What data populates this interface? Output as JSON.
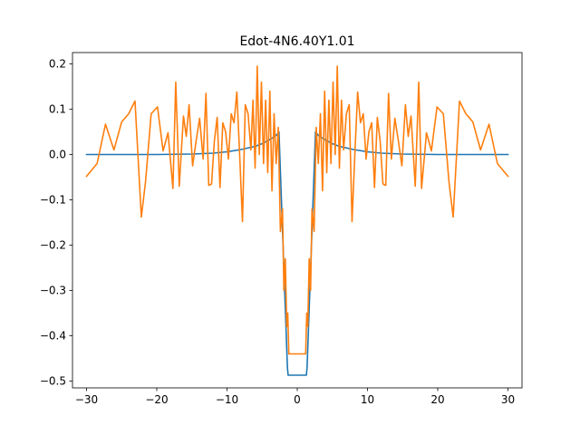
{
  "chart_data": {
    "type": "line",
    "title": "Edot-4N6.40Y1.01",
    "xlabel": "",
    "ylabel": "",
    "xlim": [
      -32,
      32
    ],
    "ylim": [
      -0.515,
      0.225
    ],
    "xticks": [
      -30,
      -20,
      -10,
      0,
      10,
      20,
      30
    ],
    "yticks": [
      -0.5,
      -0.4,
      -0.3,
      -0.2,
      -0.1,
      0.0,
      0.1,
      0.2
    ],
    "xtick_labels": [
      "−30",
      "−20",
      "−10",
      "0",
      "10",
      "20",
      "30"
    ],
    "ytick_labels": [
      "−0.5",
      "−0.4",
      "−0.3",
      "−0.2",
      "−0.1",
      "0.0",
      "0.1",
      "0.2"
    ],
    "grid": false,
    "series": [
      {
        "color": "#1f77b4",
        "points": [
          [
            -30,
            0.0
          ],
          [
            -25,
            0.0
          ],
          [
            -20,
            0.0
          ],
          [
            -15,
            0.001
          ],
          [
            -12,
            0.003
          ],
          [
            -10,
            0.006
          ],
          [
            -8,
            0.011
          ],
          [
            -6,
            0.018
          ],
          [
            -5,
            0.024
          ],
          [
            -4,
            0.032
          ],
          [
            -3,
            0.042
          ],
          [
            -2.6,
            0.05
          ],
          [
            -1.4,
            -0.47
          ],
          [
            -1.3,
            -0.487
          ],
          [
            1.3,
            -0.487
          ],
          [
            1.4,
            -0.47
          ],
          [
            2.6,
            0.05
          ],
          [
            3,
            0.042
          ],
          [
            4,
            0.032
          ],
          [
            5,
            0.024
          ],
          [
            6,
            0.018
          ],
          [
            8,
            0.011
          ],
          [
            10,
            0.006
          ],
          [
            12,
            0.003
          ],
          [
            15,
            0.001
          ],
          [
            20,
            0.0
          ],
          [
            25,
            0.0
          ],
          [
            30,
            0.0
          ]
        ]
      },
      {
        "color": "#ff7f0e",
        "points": [
          [
            -30,
            -0.048
          ],
          [
            -28.5,
            -0.02
          ],
          [
            -27.3,
            0.067
          ],
          [
            -26.1,
            0.01
          ],
          [
            -25,
            0.072
          ],
          [
            -24,
            0.09
          ],
          [
            -23.1,
            0.118
          ],
          [
            -22.2,
            -0.138
          ],
          [
            -21.6,
            -0.06
          ],
          [
            -20.8,
            0.09
          ],
          [
            -19.9,
            0.105
          ],
          [
            -19.1,
            0.008
          ],
          [
            -18.4,
            0.048
          ],
          [
            -17.7,
            -0.075
          ],
          [
            -17.3,
            0.16
          ],
          [
            -16.8,
            -0.07
          ],
          [
            -16.2,
            0.085
          ],
          [
            -15.8,
            0.04
          ],
          [
            -15.4,
            0.11
          ],
          [
            -14.9,
            -0.025
          ],
          [
            -14.4,
            0.03
          ],
          [
            -13.9,
            0.08
          ],
          [
            -13.4,
            -0.01
          ],
          [
            -13.0,
            0.135
          ],
          [
            -12.6,
            -0.068
          ],
          [
            -12.2,
            -0.065
          ],
          [
            -11.8,
            0.03
          ],
          [
            -11.4,
            0.082
          ],
          [
            -11.0,
            -0.073
          ],
          [
            -10.6,
            0.07
          ],
          [
            -10.2,
            0.05
          ],
          [
            -9.8,
            -0.01
          ],
          [
            -9.4,
            0.09
          ],
          [
            -9.0,
            0.07
          ],
          [
            -8.6,
            0.138
          ],
          [
            -8.2,
            0.0
          ],
          [
            -7.8,
            -0.148
          ],
          [
            -7.4,
            0.11
          ],
          [
            -7.0,
            0.09
          ],
          [
            -6.6,
            0.01
          ],
          [
            -6.3,
            0.12
          ],
          [
            -6.0,
            -0.03
          ],
          [
            -5.7,
            0.195
          ],
          [
            -5.4,
            0.0
          ],
          [
            -5.1,
            0.16
          ],
          [
            -4.8,
            -0.02
          ],
          [
            -4.5,
            0.12
          ],
          [
            -4.2,
            -0.04
          ],
          [
            -3.9,
            0.14
          ],
          [
            -3.6,
            -0.08
          ],
          [
            -3.3,
            0.09
          ],
          [
            -3.0,
            -0.02
          ],
          [
            -2.7,
            0.06
          ],
          [
            -2.4,
            -0.17
          ],
          [
            -2.1,
            -0.12
          ],
          [
            -1.9,
            -0.3
          ],
          [
            -1.7,
            -0.23
          ],
          [
            -1.5,
            -0.38
          ],
          [
            -1.35,
            -0.35
          ],
          [
            -1.2,
            -0.44
          ],
          [
            1.2,
            -0.44
          ],
          [
            1.35,
            -0.35
          ],
          [
            1.5,
            -0.38
          ],
          [
            1.7,
            -0.23
          ],
          [
            1.9,
            -0.3
          ],
          [
            2.1,
            -0.12
          ],
          [
            2.4,
            -0.17
          ],
          [
            2.7,
            0.06
          ],
          [
            3.0,
            -0.02
          ],
          [
            3.3,
            0.09
          ],
          [
            3.6,
            -0.08
          ],
          [
            3.9,
            0.14
          ],
          [
            4.2,
            -0.04
          ],
          [
            4.5,
            0.12
          ],
          [
            4.8,
            -0.02
          ],
          [
            5.1,
            0.16
          ],
          [
            5.4,
            0.0
          ],
          [
            5.7,
            0.195
          ],
          [
            6.0,
            -0.03
          ],
          [
            6.3,
            0.12
          ],
          [
            6.6,
            0.01
          ],
          [
            7.0,
            0.09
          ],
          [
            7.4,
            0.11
          ],
          [
            7.8,
            -0.148
          ],
          [
            8.2,
            0.0
          ],
          [
            8.6,
            0.138
          ],
          [
            9.0,
            0.07
          ],
          [
            9.4,
            0.09
          ],
          [
            9.8,
            -0.01
          ],
          [
            10.2,
            0.05
          ],
          [
            10.6,
            0.07
          ],
          [
            11.0,
            -0.073
          ],
          [
            11.4,
            0.082
          ],
          [
            11.8,
            0.03
          ],
          [
            12.2,
            -0.065
          ],
          [
            12.6,
            -0.068
          ],
          [
            13.0,
            0.135
          ],
          [
            13.4,
            -0.01
          ],
          [
            13.9,
            0.08
          ],
          [
            14.4,
            0.03
          ],
          [
            14.9,
            -0.025
          ],
          [
            15.4,
            0.11
          ],
          [
            15.8,
            0.04
          ],
          [
            16.2,
            0.085
          ],
          [
            16.8,
            -0.07
          ],
          [
            17.3,
            0.16
          ],
          [
            17.7,
            -0.075
          ],
          [
            18.4,
            0.048
          ],
          [
            19.1,
            0.008
          ],
          [
            19.9,
            0.105
          ],
          [
            20.8,
            0.09
          ],
          [
            21.6,
            -0.06
          ],
          [
            22.2,
            -0.138
          ],
          [
            23.1,
            0.118
          ],
          [
            24,
            0.09
          ],
          [
            25,
            0.072
          ],
          [
            26.1,
            0.01
          ],
          [
            27.3,
            0.067
          ],
          [
            28.5,
            -0.02
          ],
          [
            30,
            -0.048
          ]
        ]
      }
    ]
  }
}
